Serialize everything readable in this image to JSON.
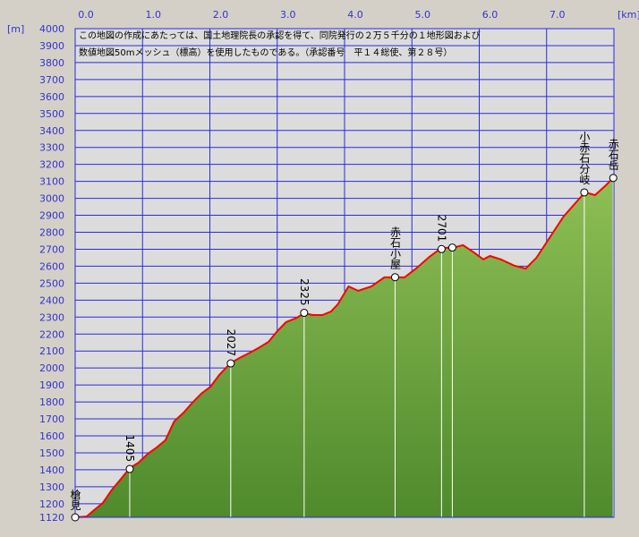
{
  "chart_data": {
    "type": "area",
    "notice": [
      "この地図の作成にあたっては、国土地理院長の承認を得て、同院発行の２万５千分の１地形図および",
      "数値地図50mメッシュ（標高）を使用したものである。（承認番号　平１４総使、第２８号）"
    ],
    "x_unit": "[km]",
    "y_unit": "[m]",
    "xlim": [
      0,
      8.0
    ],
    "ylim": [
      1120,
      4000
    ],
    "xticks": [
      {
        "value": 0,
        "label": "0.0"
      },
      {
        "value": 1,
        "label": "1.0"
      },
      {
        "value": 2,
        "label": "2.0"
      },
      {
        "value": 3,
        "label": "3.0"
      },
      {
        "value": 4,
        "label": "4.0"
      },
      {
        "value": 5,
        "label": "5.0"
      },
      {
        "value": 6,
        "label": "6.0"
      },
      {
        "value": 7,
        "label": "7.0"
      }
    ],
    "yticks": [
      1120,
      1200,
      1300,
      1400,
      1500,
      1600,
      1700,
      1800,
      1900,
      2000,
      2100,
      2200,
      2300,
      2400,
      2500,
      2600,
      2700,
      2800,
      2900,
      3000,
      3100,
      3200,
      3300,
      3400,
      3500,
      3600,
      3700,
      3800,
      3900,
      4000
    ],
    "grid": true,
    "line_color": "#ff0000",
    "fill_top": "#8fbf55",
    "fill_bottom": "#4f8a2c",
    "x": [
      0.0,
      0.17,
      0.28,
      0.41,
      0.54,
      0.68,
      0.81,
      0.94,
      1.08,
      1.21,
      1.34,
      1.47,
      1.61,
      1.74,
      1.87,
      2.01,
      2.14,
      2.31,
      2.44,
      2.6,
      2.74,
      2.87,
      3.0,
      3.13,
      3.29,
      3.4,
      3.53,
      3.67,
      3.8,
      3.9,
      4.06,
      4.2,
      4.4,
      4.59,
      4.73,
      4.89,
      5.06,
      5.26,
      5.44,
      5.6,
      5.76,
      5.92,
      6.06,
      6.16,
      6.32,
      6.52,
      6.69,
      6.85,
      7.05,
      7.25,
      7.45,
      7.57,
      7.72,
      7.88,
      7.99
    ],
    "values": [
      1120,
      1125,
      1162,
      1205,
      1279,
      1347,
      1410,
      1442,
      1495,
      1532,
      1574,
      1685,
      1737,
      1795,
      1848,
      1890,
      1959,
      2030,
      2059,
      2091,
      2122,
      2154,
      2217,
      2270,
      2296,
      2323,
      2312,
      2312,
      2333,
      2376,
      2481,
      2455,
      2481,
      2534,
      2534,
      2534,
      2586,
      2655,
      2708,
      2708,
      2724,
      2681,
      2640,
      2660,
      2640,
      2603,
      2586,
      2650,
      2771,
      2892,
      2982,
      3035,
      3019,
      3077,
      3120
    ],
    "named_points": [
      {
        "label": "槍見",
        "x": 0.0,
        "y": 1120
      },
      {
        "label": "赤石小屋",
        "x": 4.75,
        "y": 2535
      },
      {
        "label": "小赤石分岐",
        "x": 7.56,
        "y": 3035
      },
      {
        "label": "赤石岳",
        "x": 7.99,
        "y": 3120
      }
    ],
    "elevation_points": [
      {
        "x": 0.81,
        "y": 1405
      },
      {
        "x": 2.31,
        "y": 2027
      },
      {
        "x": 3.4,
        "y": 2325
      },
      {
        "x": 5.44,
        "y": 2701
      }
    ],
    "other_points": [
      {
        "x": 5.6,
        "y": 2710
      }
    ]
  }
}
